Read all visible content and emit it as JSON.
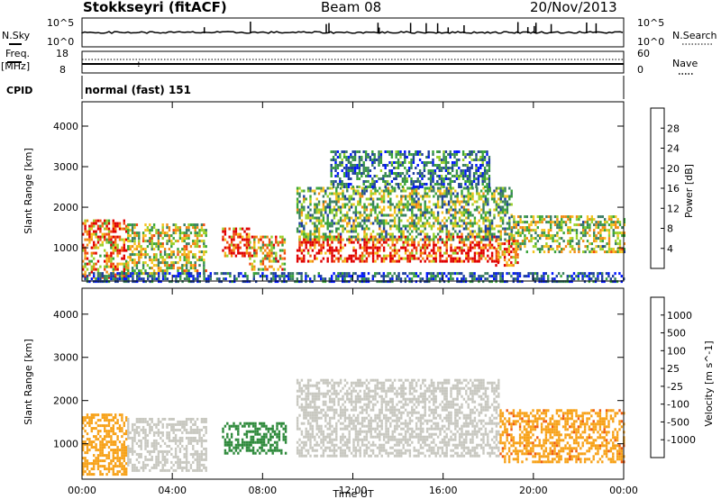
{
  "header": {
    "station": "Stokkseyri (fitACF)",
    "beam": "Beam 08",
    "date": "20/Nov/2013"
  },
  "status_panels": {
    "nsky_label": "N.Sky",
    "nsky_ticks": [
      "10^5",
      "10^0"
    ],
    "nsearch_label": "N.Search",
    "nsearch_ticks": [
      "10^5",
      "10^0"
    ],
    "freq_label": "Freq.",
    "freq_unit": "[MHz]",
    "freq_ticks": [
      "18",
      "8"
    ],
    "nave_label": "Nave",
    "nave_ticks": [
      "60",
      "0"
    ],
    "cpid_label": "CPID",
    "cpid_value": "normal (fast) 151"
  },
  "colors": {
    "power_scale": [
      "#0016ff",
      "#1f3fa0",
      "#3a7d62",
      "#3aa43a",
      "#9ad02a",
      "#f4c21e",
      "#f28a14",
      "#f04a10",
      "#e00000"
    ],
    "velocity_scale": [
      "#e01414",
      "#f05a10",
      "#f7a21a",
      "#c8c8c0",
      "#c8c8c0",
      "#5dc22c",
      "#2f8a3c",
      "#2a5fa8",
      "#1a2fb8"
    ]
  },
  "chart_data": [
    {
      "type": "heatmap",
      "panel": "power",
      "ylabel": "Slant Range [km]",
      "xlabel": "",
      "x_ticks": [
        "00:00",
        "04:00",
        "08:00",
        "12:00",
        "16:00",
        "20:00",
        "00:00"
      ],
      "y_ticks": [
        "1000",
        "2000",
        "3000",
        "4000"
      ],
      "ylim": [
        180,
        4600
      ],
      "xlim_hours": [
        0,
        24
      ],
      "colorbar_label": "Power [dB]",
      "colorbar_ticks": [
        "28",
        "24",
        "20",
        "16",
        "12",
        "8",
        "4"
      ],
      "colorbar_range": [
        0,
        30
      ],
      "scatter_regions": [
        {
          "t0": 0.0,
          "t1": 2.0,
          "r0": 300,
          "r1": 1700,
          "level": 22
        },
        {
          "t0": 2.0,
          "t1": 5.5,
          "r0": 400,
          "r1": 1600,
          "level": 16
        },
        {
          "t0": 6.2,
          "t1": 7.4,
          "r0": 800,
          "r1": 1500,
          "level": 26
        },
        {
          "t0": 7.4,
          "t1": 9.0,
          "r0": 500,
          "r1": 1300,
          "level": 18
        },
        {
          "t0": 9.5,
          "t1": 18.5,
          "r0": 700,
          "r1": 1300,
          "level": 27
        },
        {
          "t0": 9.5,
          "t1": 19.0,
          "r0": 1200,
          "r1": 2500,
          "level": 13
        },
        {
          "t0": 11.0,
          "t1": 18.0,
          "r0": 2500,
          "r1": 3400,
          "level": 8
        },
        {
          "t0": 18.3,
          "t1": 19.3,
          "r0": 600,
          "r1": 1200,
          "level": 25
        },
        {
          "t0": 19.0,
          "t1": 24.0,
          "r0": 900,
          "r1": 1800,
          "level": 15
        },
        {
          "t0": 0.0,
          "t1": 24.0,
          "r0": 200,
          "r1": 400,
          "level": 6
        }
      ]
    },
    {
      "type": "heatmap",
      "panel": "velocity",
      "ylabel": "Slant Range [km]",
      "xlabel": "Time UT",
      "x_ticks": [
        "00:00",
        "04:00",
        "08:00",
        "12:00",
        "16:00",
        "20:00",
        "00:00"
      ],
      "y_ticks": [
        "1000",
        "2000",
        "3000",
        "4000"
      ],
      "ylim": [
        180,
        4600
      ],
      "xlim_hours": [
        0,
        24
      ],
      "colorbar_label": "Velocity [m s^-1]",
      "colorbar_ticks": [
        "1000",
        "500",
        "100",
        "25",
        "-25",
        "-100",
        "-500",
        "-1000"
      ],
      "scatter_regions": [
        {
          "t0": 0.0,
          "t1": 2.0,
          "r0": 300,
          "r1": 1700,
          "level": -300
        },
        {
          "t0": 2.0,
          "t1": 5.5,
          "r0": 400,
          "r1": 1600,
          "level": 0
        },
        {
          "t0": 6.2,
          "t1": 9.0,
          "r0": 800,
          "r1": 1500,
          "level": 300
        },
        {
          "t0": 9.5,
          "t1": 18.5,
          "r0": 700,
          "r1": 2500,
          "level": 0
        },
        {
          "t0": 18.5,
          "t1": 24.0,
          "r0": 600,
          "r1": 1800,
          "level": -400
        }
      ]
    }
  ]
}
